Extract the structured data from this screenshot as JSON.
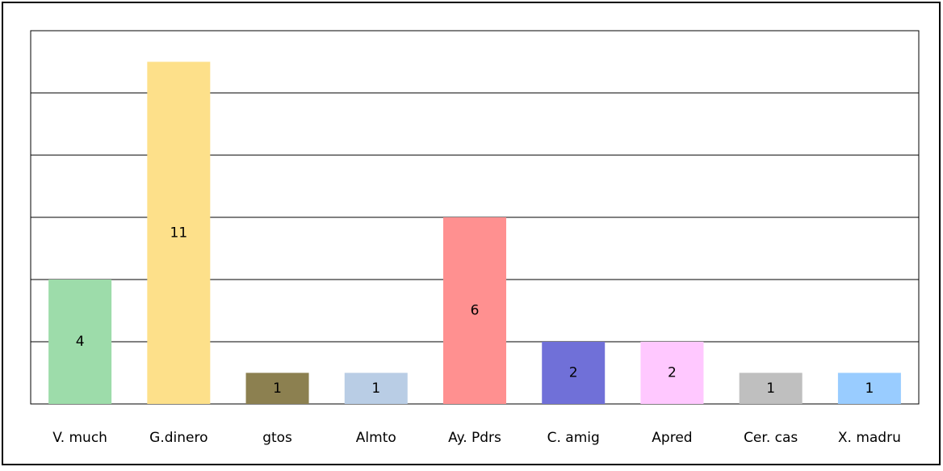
{
  "chart_data": {
    "type": "bar",
    "categories": [
      "V. much",
      "G.dinero",
      "gtos",
      "Almto",
      "Ay. Pdrs",
      "C. amig",
      "Apred",
      "Cer. cas",
      "X. madru"
    ],
    "values": [
      4,
      11,
      1,
      1,
      6,
      2,
      2,
      1,
      1
    ],
    "colors": [
      "#9ddcaa",
      "#fde08a",
      "#8c8050",
      "#b9cde5",
      "#ff9090",
      "#7070d8",
      "#ffc8ff",
      "#bfbfbf",
      "#99ccff"
    ],
    "ylim": [
      0,
      12
    ],
    "yticks": [
      0,
      2,
      4,
      6,
      8,
      10,
      12
    ],
    "grid": true
  }
}
